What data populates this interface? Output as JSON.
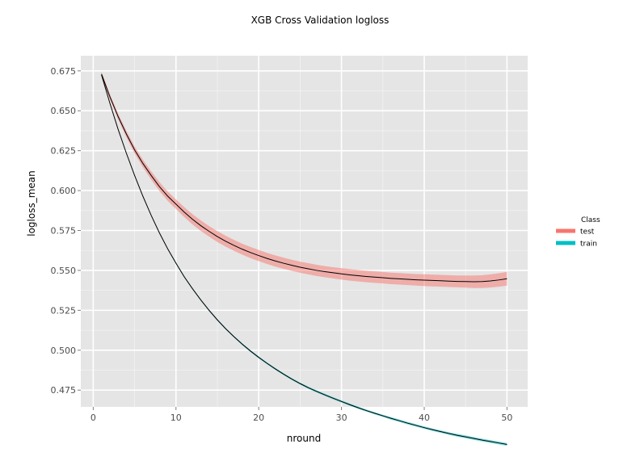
{
  "chart_data": {
    "type": "line",
    "title": "XGB Cross Validation logloss",
    "xlabel": "nround",
    "ylabel": "logloss_mean",
    "xlim": [
      -1.5,
      52.5
    ],
    "ylim": [
      0.4645,
      0.6845
    ],
    "x_ticks": [
      0,
      10,
      20,
      30,
      40,
      50
    ],
    "x_tick_labels": [
      "0",
      "10",
      "20",
      "30",
      "40",
      "50"
    ],
    "y_ticks": [
      0.475,
      0.5,
      0.525,
      0.55,
      0.575,
      0.6,
      0.625,
      0.65,
      0.675
    ],
    "y_tick_labels": [
      "0.475",
      "0.500",
      "0.525",
      "0.550",
      "0.575",
      "0.600",
      "0.625",
      "0.650",
      "0.675"
    ],
    "grid": true,
    "legend": {
      "title": "Class",
      "position": "right"
    },
    "x": [
      1,
      2,
      3,
      4,
      5,
      6,
      7,
      8,
      9,
      10,
      11,
      12,
      13,
      14,
      15,
      16,
      17,
      18,
      19,
      20,
      21,
      22,
      23,
      24,
      25,
      26,
      27,
      28,
      29,
      30,
      31,
      32,
      33,
      34,
      35,
      36,
      37,
      38,
      39,
      40,
      41,
      42,
      43,
      44,
      45,
      46,
      47,
      48,
      49,
      50
    ],
    "series": [
      {
        "name": "test",
        "color": "#F8766D",
        "line_color": "#000000",
        "mean": [
          0.673,
          0.659,
          0.6465,
          0.6355,
          0.6255,
          0.617,
          0.6095,
          0.6025,
          0.5965,
          0.5915,
          0.5865,
          0.582,
          0.578,
          0.5745,
          0.5712,
          0.5683,
          0.5657,
          0.5633,
          0.5612,
          0.5593,
          0.5575,
          0.5559,
          0.5545,
          0.5532,
          0.552,
          0.551,
          0.55,
          0.5492,
          0.5485,
          0.5478,
          0.5472,
          0.5467,
          0.5462,
          0.5458,
          0.5454,
          0.545,
          0.5447,
          0.5444,
          0.5441,
          0.5439,
          0.5437,
          0.5435,
          0.5433,
          0.5431,
          0.543,
          0.5429,
          0.543,
          0.5434,
          0.544,
          0.5448
        ],
        "std": [
          0.0015,
          0.0016,
          0.0018,
          0.002,
          0.0022,
          0.0024,
          0.0026,
          0.0028,
          0.0029,
          0.003,
          0.0031,
          0.0032,
          0.0033,
          0.0033,
          0.0034,
          0.0034,
          0.0034,
          0.0034,
          0.0035,
          0.0035,
          0.0035,
          0.0035,
          0.0035,
          0.0035,
          0.0035,
          0.0035,
          0.0035,
          0.0035,
          0.0035,
          0.0036,
          0.0036,
          0.0036,
          0.0036,
          0.0036,
          0.0036,
          0.0036,
          0.0036,
          0.0036,
          0.0036,
          0.0037,
          0.0037,
          0.0037,
          0.0037,
          0.0037,
          0.0038,
          0.0039,
          0.004,
          0.0041,
          0.0042,
          0.0043
        ]
      },
      {
        "name": "train",
        "color": "#00BFC4",
        "line_color": "#000000",
        "mean": [
          0.6725,
          0.655,
          0.6385,
          0.6235,
          0.6095,
          0.5965,
          0.5845,
          0.5735,
          0.5635,
          0.5545,
          0.546,
          0.5385,
          0.5315,
          0.525,
          0.519,
          0.5135,
          0.5085,
          0.5038,
          0.4995,
          0.4955,
          0.4918,
          0.4883,
          0.485,
          0.4819,
          0.4791,
          0.4765,
          0.4742,
          0.472,
          0.4699,
          0.4679,
          0.4659,
          0.464,
          0.4622,
          0.4605,
          0.4589,
          0.4573,
          0.4558,
          0.4543,
          0.4529,
          0.4515,
          0.4502,
          0.449,
          0.4478,
          0.4467,
          0.4457,
          0.4447,
          0.4437,
          0.4428,
          0.4419,
          0.441
        ],
        "std": [
          0.0003,
          0.0003,
          0.0003,
          0.0003,
          0.0004,
          0.0004,
          0.0004,
          0.0004,
          0.0004,
          0.0005,
          0.0005,
          0.0005,
          0.0005,
          0.0005,
          0.0005,
          0.0005,
          0.0005,
          0.0006,
          0.0006,
          0.0006,
          0.0006,
          0.0006,
          0.0006,
          0.0006,
          0.0006,
          0.0007,
          0.0007,
          0.0007,
          0.0007,
          0.0007,
          0.0007,
          0.0007,
          0.0007,
          0.0007,
          0.0007,
          0.0008,
          0.0008,
          0.0008,
          0.0008,
          0.0008,
          0.0008,
          0.0008,
          0.0008,
          0.0009,
          0.0009,
          0.0009,
          0.0009,
          0.0009,
          0.0009,
          0.0009
        ]
      }
    ]
  }
}
